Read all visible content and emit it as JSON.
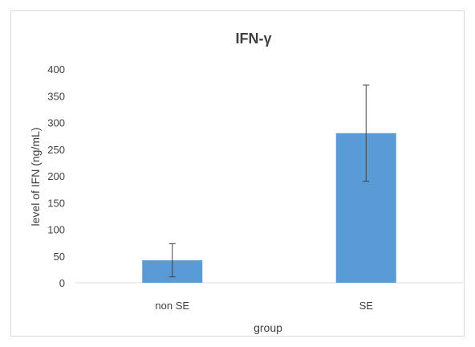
{
  "chart_data": {
    "type": "bar",
    "title": "IFN-γ",
    "xlabel": "group",
    "ylabel": "level of IFN (ng/mL)",
    "categories": [
      "non SE",
      "SE"
    ],
    "values": [
      42,
      280
    ],
    "error": [
      31,
      90
    ],
    "ylim": [
      0,
      400
    ],
    "yticks": [
      0,
      50,
      100,
      150,
      200,
      250,
      300,
      350,
      400
    ],
    "ytick_labels": [
      "0",
      "50",
      "100",
      "150",
      "200",
      "250",
      "300",
      "350",
      "400"
    ],
    "grid": false,
    "legend": "none",
    "bar_color": "#5b9bd5",
    "error_bar_color": "#404040"
  }
}
